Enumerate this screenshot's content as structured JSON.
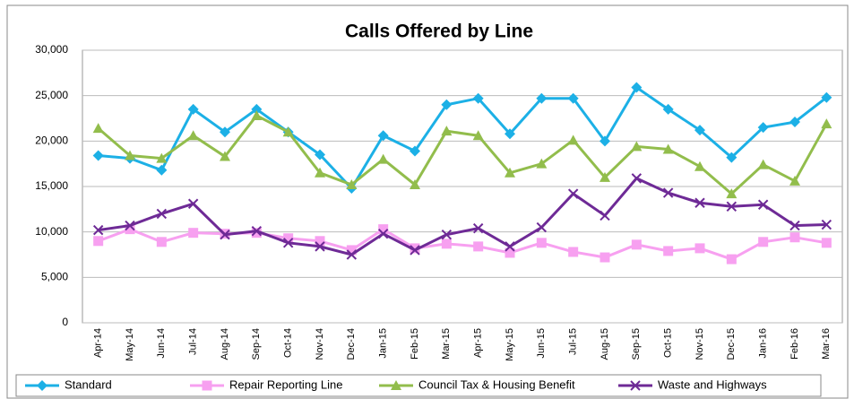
{
  "chart_data": {
    "type": "line",
    "title": "Calls Offered by Line",
    "categories": [
      "Apr-14",
      "May-14",
      "Jun-14",
      "Jul-14",
      "Aug-14",
      "Sep-14",
      "Oct-14",
      "Nov-14",
      "Dec-14",
      "Jan-15",
      "Feb-15",
      "Mar-15",
      "Apr-15",
      "May-15",
      "Jun-15",
      "Jul-15",
      "Aug-15",
      "Sep-15",
      "Oct-15",
      "Nov-15",
      "Dec-15",
      "Jan-16",
      "Feb-16",
      "Mar-16"
    ],
    "series": [
      {
        "name": "Standard",
        "color": "#1cb0e6",
        "marker": "diamond",
        "values": [
          18400,
          18100,
          16800,
          23500,
          21000,
          23500,
          21000,
          18500,
          14800,
          20600,
          18900,
          24000,
          24700,
          20800,
          24700,
          24700,
          20000,
          25900,
          23500,
          21200,
          18200,
          21500,
          22100,
          24800
        ]
      },
      {
        "name": "Repair Reporting Line",
        "color": "#f7a0f0",
        "marker": "square",
        "values": [
          9000,
          10300,
          8900,
          9900,
          9800,
          9900,
          9300,
          9000,
          8000,
          10300,
          8200,
          8700,
          8400,
          7700,
          8800,
          7800,
          7200,
          8600,
          7900,
          8200,
          7000,
          8900,
          9400,
          8800
        ]
      },
      {
        "name": "Council Tax & Housing Benefit",
        "color": "#92bd4c",
        "marker": "triangle",
        "values": [
          21400,
          18400,
          18100,
          20600,
          18300,
          22800,
          21000,
          16500,
          15200,
          18000,
          15200,
          21100,
          20600,
          16500,
          17500,
          20100,
          16000,
          19400,
          19100,
          17200,
          14200,
          17400,
          15600,
          21900
        ]
      },
      {
        "name": "Waste and Highways",
        "color": "#6e2a96",
        "marker": "x",
        "values": [
          10200,
          10700,
          12000,
          13100,
          9700,
          10100,
          8800,
          8400,
          7500,
          9800,
          8000,
          9700,
          10400,
          8400,
          10500,
          14200,
          11800,
          15900,
          14300,
          13200,
          12800,
          13000,
          10700,
          10800
        ]
      }
    ],
    "ylim": [
      0,
      30000
    ],
    "yticks": [
      0,
      {
        "value": 5000,
        "label": "5,000"
      },
      {
        "value": 10000,
        "label": "10,000"
      },
      {
        "value": 15000,
        "label": "15,000"
      },
      {
        "value": 20000,
        "label": "20,000"
      },
      {
        "value": 25000,
        "label": "25,000"
      },
      {
        "value": 30000,
        "label": "30,000"
      }
    ],
    "grid": true,
    "legend": "bottom"
  }
}
